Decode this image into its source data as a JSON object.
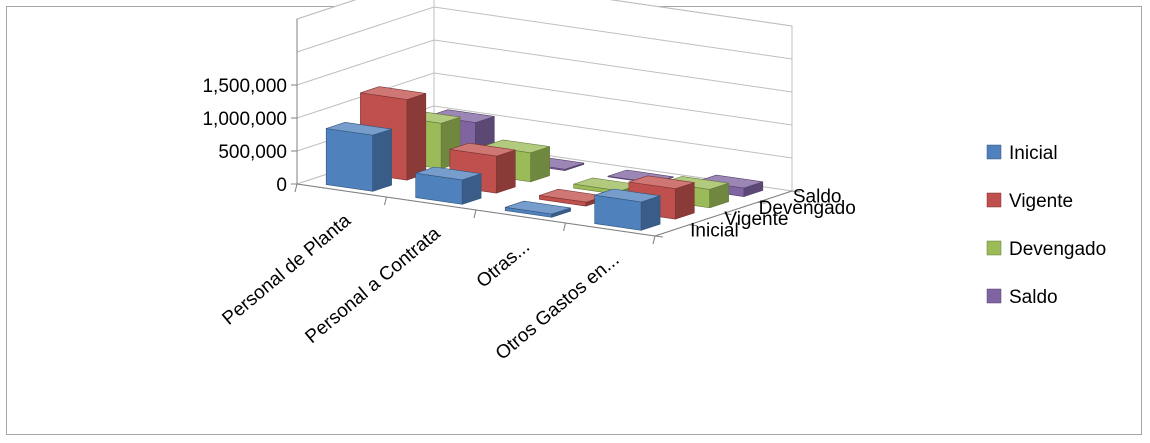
{
  "chart_data": {
    "type": "bar",
    "variant": "3d-column",
    "categories": [
      "Personal de Planta",
      "Personal a Contrata",
      "Otras...",
      "Otros Gastos en..."
    ],
    "series": [
      {
        "name": "Inicial",
        "color": "#4f81bd",
        "values": [
          850000,
          370000,
          50000,
          430000
        ]
      },
      {
        "name": "Vigente",
        "color": "#c0504d",
        "values": [
          1220000,
          560000,
          60000,
          460000
        ]
      },
      {
        "name": "Devengado",
        "color": "#9bbb59",
        "values": [
          690000,
          440000,
          60000,
          280000
        ]
      },
      {
        "name": "Saldo",
        "color": "#8064a2",
        "values": [
          530000,
          20000,
          10000,
          130000
        ]
      }
    ],
    "y_ticks": [
      "1,500,000",
      "1,000,000",
      "500,000",
      "0"
    ],
    "ylim": [
      0,
      2500000
    ],
    "legend_position": "right",
    "grid": true,
    "title": "",
    "xlabel": "",
    "ylabel": ""
  }
}
